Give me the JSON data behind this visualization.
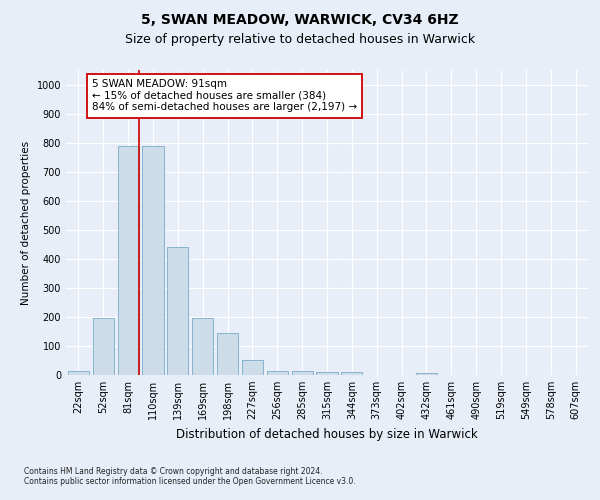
{
  "title": "5, SWAN MEADOW, WARWICK, CV34 6HZ",
  "subtitle": "Size of property relative to detached houses in Warwick",
  "xlabel": "Distribution of detached houses by size in Warwick",
  "ylabel": "Number of detached properties",
  "footnote1": "Contains HM Land Registry data © Crown copyright and database right 2024.",
  "footnote2": "Contains public sector information licensed under the Open Government Licence v3.0.",
  "categories": [
    "22sqm",
    "52sqm",
    "81sqm",
    "110sqm",
    "139sqm",
    "169sqm",
    "198sqm",
    "227sqm",
    "256sqm",
    "285sqm",
    "315sqm",
    "344sqm",
    "373sqm",
    "402sqm",
    "432sqm",
    "461sqm",
    "490sqm",
    "519sqm",
    "549sqm",
    "578sqm",
    "607sqm"
  ],
  "values": [
    15,
    195,
    790,
    790,
    440,
    195,
    145,
    50,
    15,
    15,
    10,
    10,
    0,
    0,
    8,
    0,
    0,
    0,
    0,
    0,
    0
  ],
  "bar_color": "#ccdce8",
  "bar_edge_color": "#7aaac8",
  "vline_color": "#cc0000",
  "annotation_text": "5 SWAN MEADOW: 91sqm\n← 15% of detached houses are smaller (384)\n84% of semi-detached houses are larger (2,197) →",
  "annotation_box_color": "#ffffff",
  "annotation_box_edge_color": "#cc0000",
  "ylim": [
    0,
    1050
  ],
  "yticks": [
    0,
    100,
    200,
    300,
    400,
    500,
    600,
    700,
    800,
    900,
    1000
  ],
  "bg_color": "#e8eef8",
  "plot_bg_color": "#e8eef8",
  "grid_color": "#ffffff",
  "title_fontsize": 10,
  "subtitle_fontsize": 9,
  "tick_fontsize": 7,
  "ylabel_fontsize": 7.5,
  "xlabel_fontsize": 8.5,
  "footnote_fontsize": 5.5
}
